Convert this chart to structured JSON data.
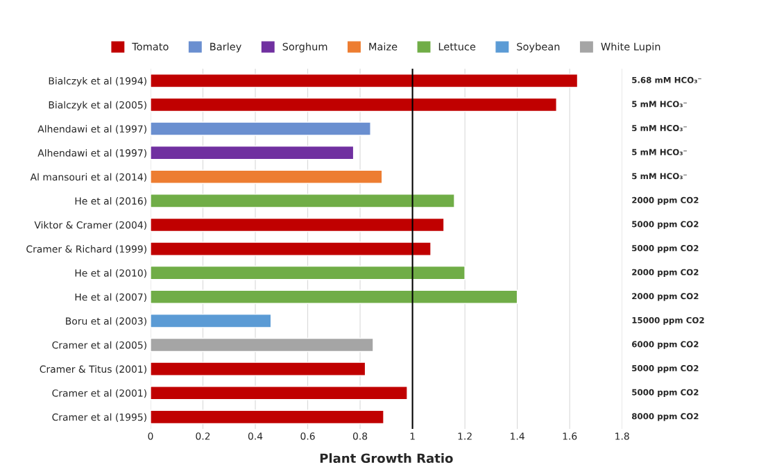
{
  "chart_data": {
    "type": "bar",
    "orientation": "horizontal",
    "xlabel": "Plant Growth Ratio",
    "categories": [
      "Bialczyk et al (1994)",
      "Bialczyk et al (2005)",
      "Alhendawi et al (1997)",
      "Alhendawi et al (1997)",
      "Al mansouri et al (2014)",
      "He et al (2016)",
      "Viktor & Cramer (2004)",
      "Cramer & Richard (1999)",
      "He et al (2010)",
      "He et al (2007)",
      "Boru et al (2003)",
      "Cramer et al (2005)",
      "Cramer & Titus (2001)",
      "Cramer et al (2001)",
      "Cramer et al (1995)"
    ],
    "series": [
      {
        "name": "Tomato",
        "color": "#c00000",
        "values": [
          1.63,
          1.55,
          null,
          null,
          null,
          null,
          1.12,
          1.07,
          null,
          null,
          null,
          null,
          0.82,
          0.98,
          0.89
        ]
      },
      {
        "name": "Barley",
        "color": "#6a8fd0",
        "values": [
          null,
          null,
          0.84,
          null,
          null,
          null,
          null,
          null,
          null,
          null,
          null,
          null,
          null,
          null,
          null
        ]
      },
      {
        "name": "Sorghum",
        "color": "#7030a0",
        "values": [
          null,
          null,
          null,
          0.775,
          null,
          null,
          null,
          null,
          null,
          null,
          null,
          null,
          null,
          null,
          null
        ]
      },
      {
        "name": "Maize",
        "color": "#ed7d31",
        "values": [
          null,
          null,
          null,
          null,
          0.884,
          null,
          null,
          null,
          null,
          null,
          null,
          null,
          null,
          null,
          null
        ]
      },
      {
        "name": "Lettuce",
        "color": "#70ad47",
        "values": [
          null,
          null,
          null,
          null,
          null,
          1.16,
          null,
          null,
          1.2,
          1.4,
          null,
          null,
          null,
          null,
          null
        ]
      },
      {
        "name": "Soybean",
        "color": "#5b9bd5",
        "values": [
          null,
          null,
          null,
          null,
          null,
          null,
          null,
          null,
          null,
          null,
          0.46,
          null,
          null,
          null,
          null
        ]
      },
      {
        "name": "White Lupin",
        "color": "#a5a5a5",
        "values": [
          null,
          null,
          null,
          null,
          null,
          null,
          null,
          null,
          null,
          null,
          null,
          0.85,
          null,
          null,
          null
        ]
      }
    ],
    "xlim": [
      0,
      1.8
    ],
    "xticks": [
      0,
      0.2,
      0.4,
      0.6,
      0.8,
      1,
      1.2,
      1.4,
      1.6,
      1.8
    ],
    "grid": "x",
    "legend": "top",
    "ref_lines": [
      {
        "axis": "x",
        "value": 1,
        "color": "#000000"
      }
    ],
    "annotations": [
      "5.68 mM HCO₃⁻",
      "5 mM HCO₃⁻",
      "5 mM HCO₃⁻",
      "5 mM HCO₃⁻",
      "5 mM HCO₃⁻",
      "2000 ppm CO2",
      "5000 ppm CO2",
      "5000 ppm CO2",
      "2000 ppm CO2",
      "2000 ppm CO2",
      "15000 ppm CO2",
      "6000 ppm CO2",
      "5000 ppm CO2",
      "5000 ppm CO2",
      "8000 ppm CO2"
    ]
  }
}
